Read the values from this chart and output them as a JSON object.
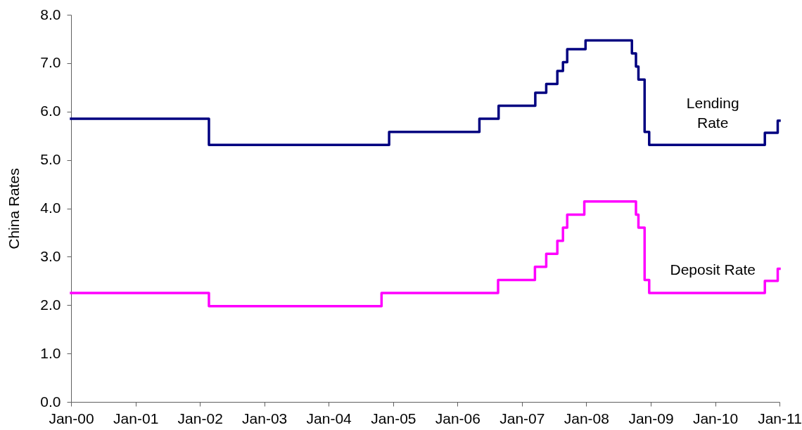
{
  "chart_data": {
    "type": "step",
    "ylabel": "China Rates",
    "grid": false,
    "line_style": "solid",
    "xlim": [
      "2000-01-01",
      "2011-01-01"
    ],
    "ylim": [
      0,
      8
    ],
    "xticks": [
      {
        "value": "2000-01-01",
        "label": "Jan-00"
      },
      {
        "value": "2001-01-01",
        "label": "Jan-01"
      },
      {
        "value": "2002-01-01",
        "label": "Jan-02"
      },
      {
        "value": "2003-01-01",
        "label": "Jan-03"
      },
      {
        "value": "2004-01-01",
        "label": "Jan-04"
      },
      {
        "value": "2005-01-01",
        "label": "Jan-05"
      },
      {
        "value": "2006-01-01",
        "label": "Jan-06"
      },
      {
        "value": "2007-01-01",
        "label": "Jan-07"
      },
      {
        "value": "2008-01-01",
        "label": "Jan-08"
      },
      {
        "value": "2009-01-01",
        "label": "Jan-09"
      },
      {
        "value": "2010-01-01",
        "label": "Jan-10"
      },
      {
        "value": "2011-01-01",
        "label": "Jan-11"
      }
    ],
    "yticks": [
      {
        "value": 0,
        "label": "0.0"
      },
      {
        "value": 1,
        "label": "1.0"
      },
      {
        "value": 2,
        "label": "2.0"
      },
      {
        "value": 3,
        "label": "3.0"
      },
      {
        "value": 4,
        "label": "4.0"
      },
      {
        "value": 5,
        "label": "5.0"
      },
      {
        "value": 6,
        "label": "6.0"
      },
      {
        "value": 7,
        "label": "7.0"
      },
      {
        "value": 8,
        "label": "8.0"
      }
    ],
    "series": [
      {
        "name": "Lending Rate",
        "color": "#000080",
        "x": [
          "2000-01-01",
          "2002-02-21",
          "2004-12-09",
          "2006-05-05",
          "2006-08-22",
          "2007-03-18",
          "2007-05-19",
          "2007-07-21",
          "2007-08-22",
          "2007-09-15",
          "2007-12-28",
          "2008-09-16",
          "2008-10-09",
          "2008-10-23",
          "2008-11-27",
          "2008-12-23",
          "2010-10-10",
          "2010-12-22",
          "2011-01-01"
        ],
        "values": [
          5.85,
          5.31,
          5.58,
          5.85,
          6.12,
          6.39,
          6.57,
          6.84,
          7.02,
          7.29,
          7.47,
          7.2,
          6.93,
          6.66,
          5.58,
          5.31,
          5.56,
          5.81,
          5.81
        ]
      },
      {
        "name": "Deposit Rate",
        "color": "#ff00ff",
        "x": [
          "2000-01-01",
          "2002-02-21",
          "2004-10-27",
          "2006-08-19",
          "2007-03-16",
          "2007-05-19",
          "2007-07-21",
          "2007-08-22",
          "2007-09-15",
          "2007-12-21",
          "2008-10-09",
          "2008-10-23",
          "2008-11-27",
          "2008-12-23",
          "2010-10-10",
          "2010-12-22",
          "2011-01-01"
        ],
        "values": [
          2.25,
          1.98,
          2.25,
          2.52,
          2.79,
          3.06,
          3.33,
          3.6,
          3.87,
          4.14,
          3.87,
          3.6,
          2.52,
          2.25,
          2.5,
          2.75,
          2.75
        ]
      }
    ]
  }
}
